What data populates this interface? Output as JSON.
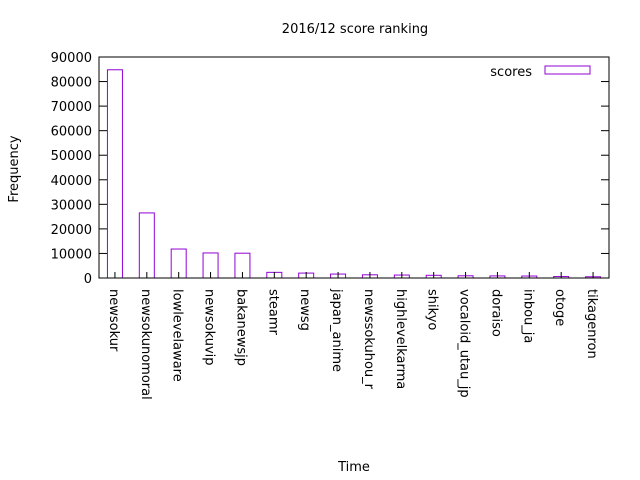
{
  "chart_data": {
    "type": "bar",
    "title": "2016/12 score ranking",
    "xlabel": "Time",
    "ylabel": "Frequency",
    "ylim": [
      0,
      90000
    ],
    "yticks": [
      0,
      10000,
      20000,
      30000,
      40000,
      50000,
      60000,
      70000,
      80000,
      90000
    ],
    "grid": false,
    "legend_position": "top-right",
    "categories": [
      "newsokur",
      "newsokunomoral",
      "lowlevelaware",
      "newsokuvip",
      "bakanewsjp",
      "steamr",
      "newsg",
      "japan_anime",
      "newssokuhou_r",
      "highlevelkarma",
      "shikyo",
      "vocaloid_utau_jp",
      "doraiso",
      "inbou_ja",
      "otoge",
      "tikagenron"
    ],
    "series": [
      {
        "name": "scores",
        "color": "#9400d3",
        "values": [
          84800,
          26500,
          11800,
          10200,
          10100,
          2300,
          2000,
          1600,
          1300,
          1200,
          1100,
          900,
          850,
          800,
          600,
          500
        ]
      }
    ]
  }
}
